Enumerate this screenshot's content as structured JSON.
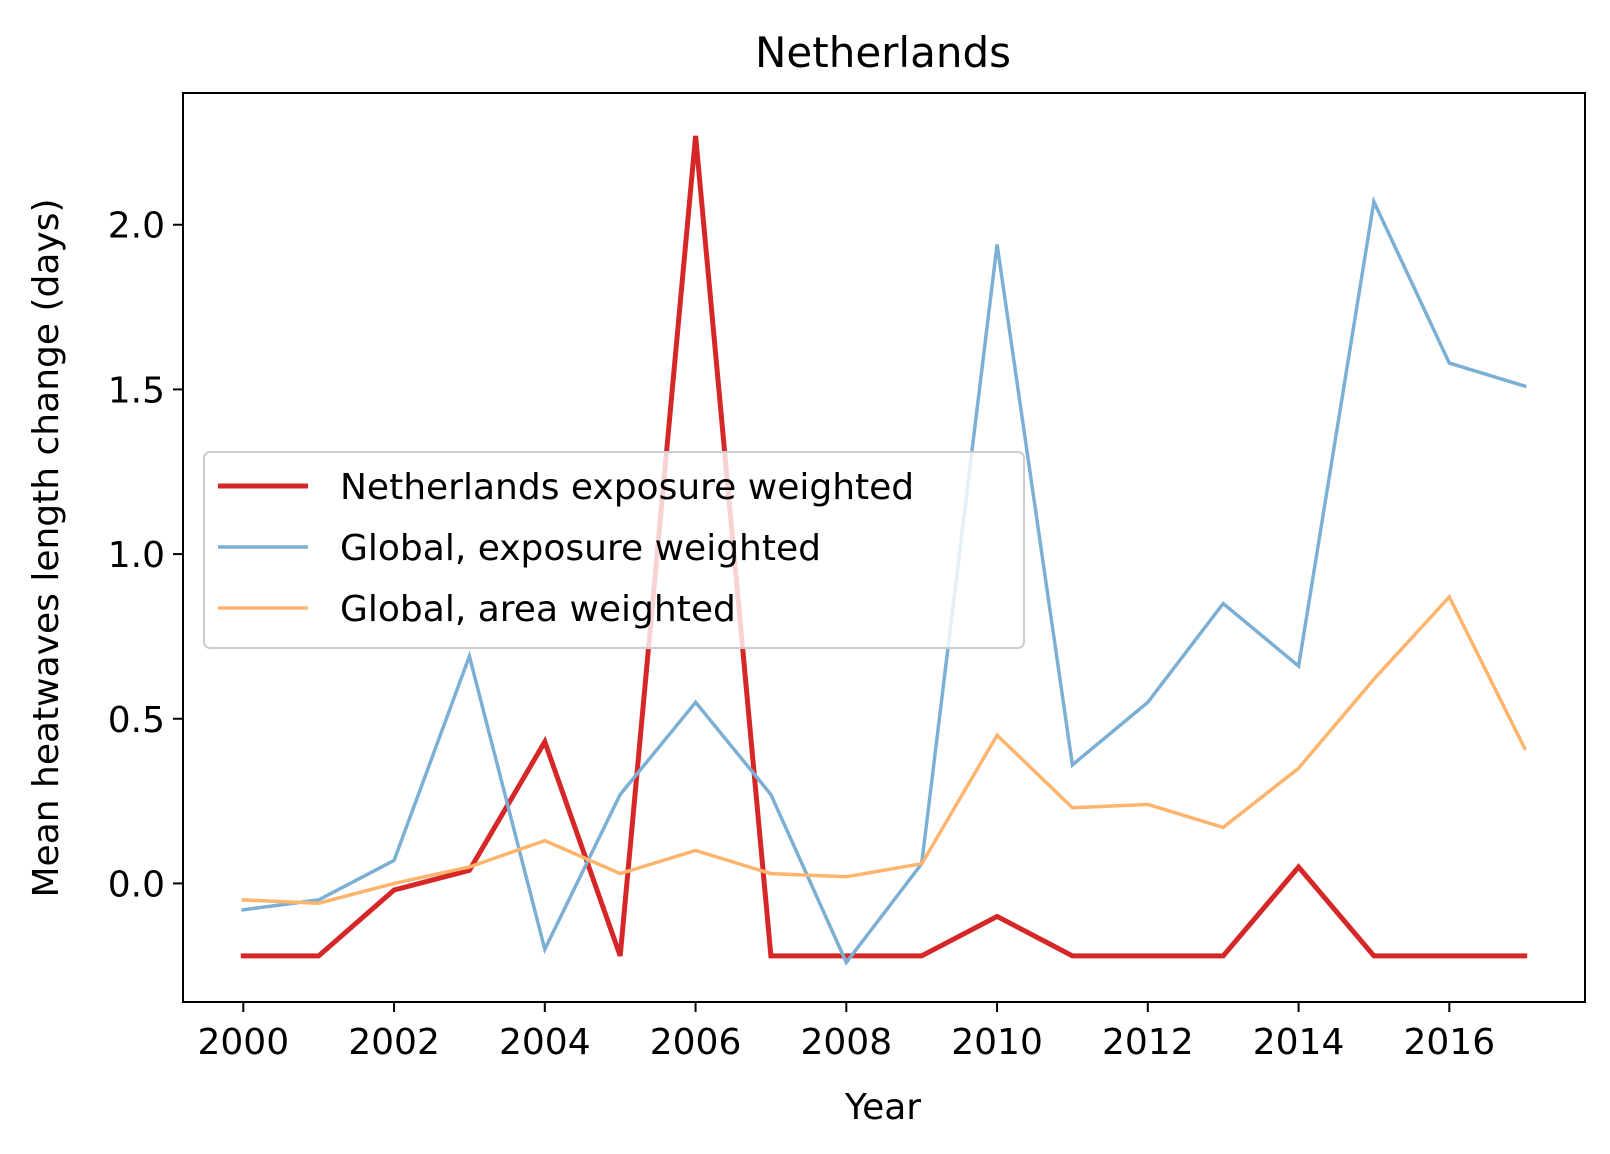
{
  "chart_data": {
    "type": "line",
    "title": "Netherlands",
    "xlabel": "Year",
    "ylabel": "Mean heatwaves length change (days)",
    "x": [
      2000,
      2001,
      2002,
      2003,
      2004,
      2005,
      2006,
      2007,
      2008,
      2009,
      2010,
      2011,
      2012,
      2013,
      2014,
      2015,
      2016,
      2017
    ],
    "xlim": [
      1999.2,
      2017.8
    ],
    "ylim": [
      -0.36,
      2.4
    ],
    "xticks": [
      2000,
      2002,
      2004,
      2006,
      2008,
      2010,
      2012,
      2014,
      2016
    ],
    "yticks": [
      0.0,
      0.5,
      1.0,
      1.5,
      2.0
    ],
    "ytick_labels": [
      "0.0",
      "0.5",
      "1.0",
      "1.5",
      "2.0"
    ],
    "grid": false,
    "legend_position": "center-left",
    "series": [
      {
        "name": "Netherlands exposure weighted",
        "color": "#d62728",
        "values": [
          -0.22,
          -0.22,
          -0.02,
          0.04,
          0.43,
          -0.22,
          2.27,
          -0.22,
          -0.22,
          -0.22,
          -0.1,
          -0.22,
          -0.22,
          -0.22,
          0.05,
          -0.22,
          -0.22,
          -0.22
        ]
      },
      {
        "name": "Global, exposure weighted",
        "color": "#7bafd4",
        "values": [
          -0.08,
          -0.05,
          0.07,
          0.69,
          -0.2,
          0.27,
          0.55,
          0.27,
          -0.24,
          0.06,
          1.94,
          0.36,
          0.55,
          0.85,
          0.66,
          2.07,
          1.58,
          1.51
        ]
      },
      {
        "name": "Global, area weighted",
        "color": "#fdb46c",
        "values": [
          -0.05,
          -0.06,
          0.0,
          0.05,
          0.13,
          0.03,
          0.1,
          0.03,
          0.02,
          0.06,
          0.45,
          0.23,
          0.24,
          0.17,
          0.35,
          0.62,
          0.87,
          0.41
        ]
      }
    ]
  }
}
